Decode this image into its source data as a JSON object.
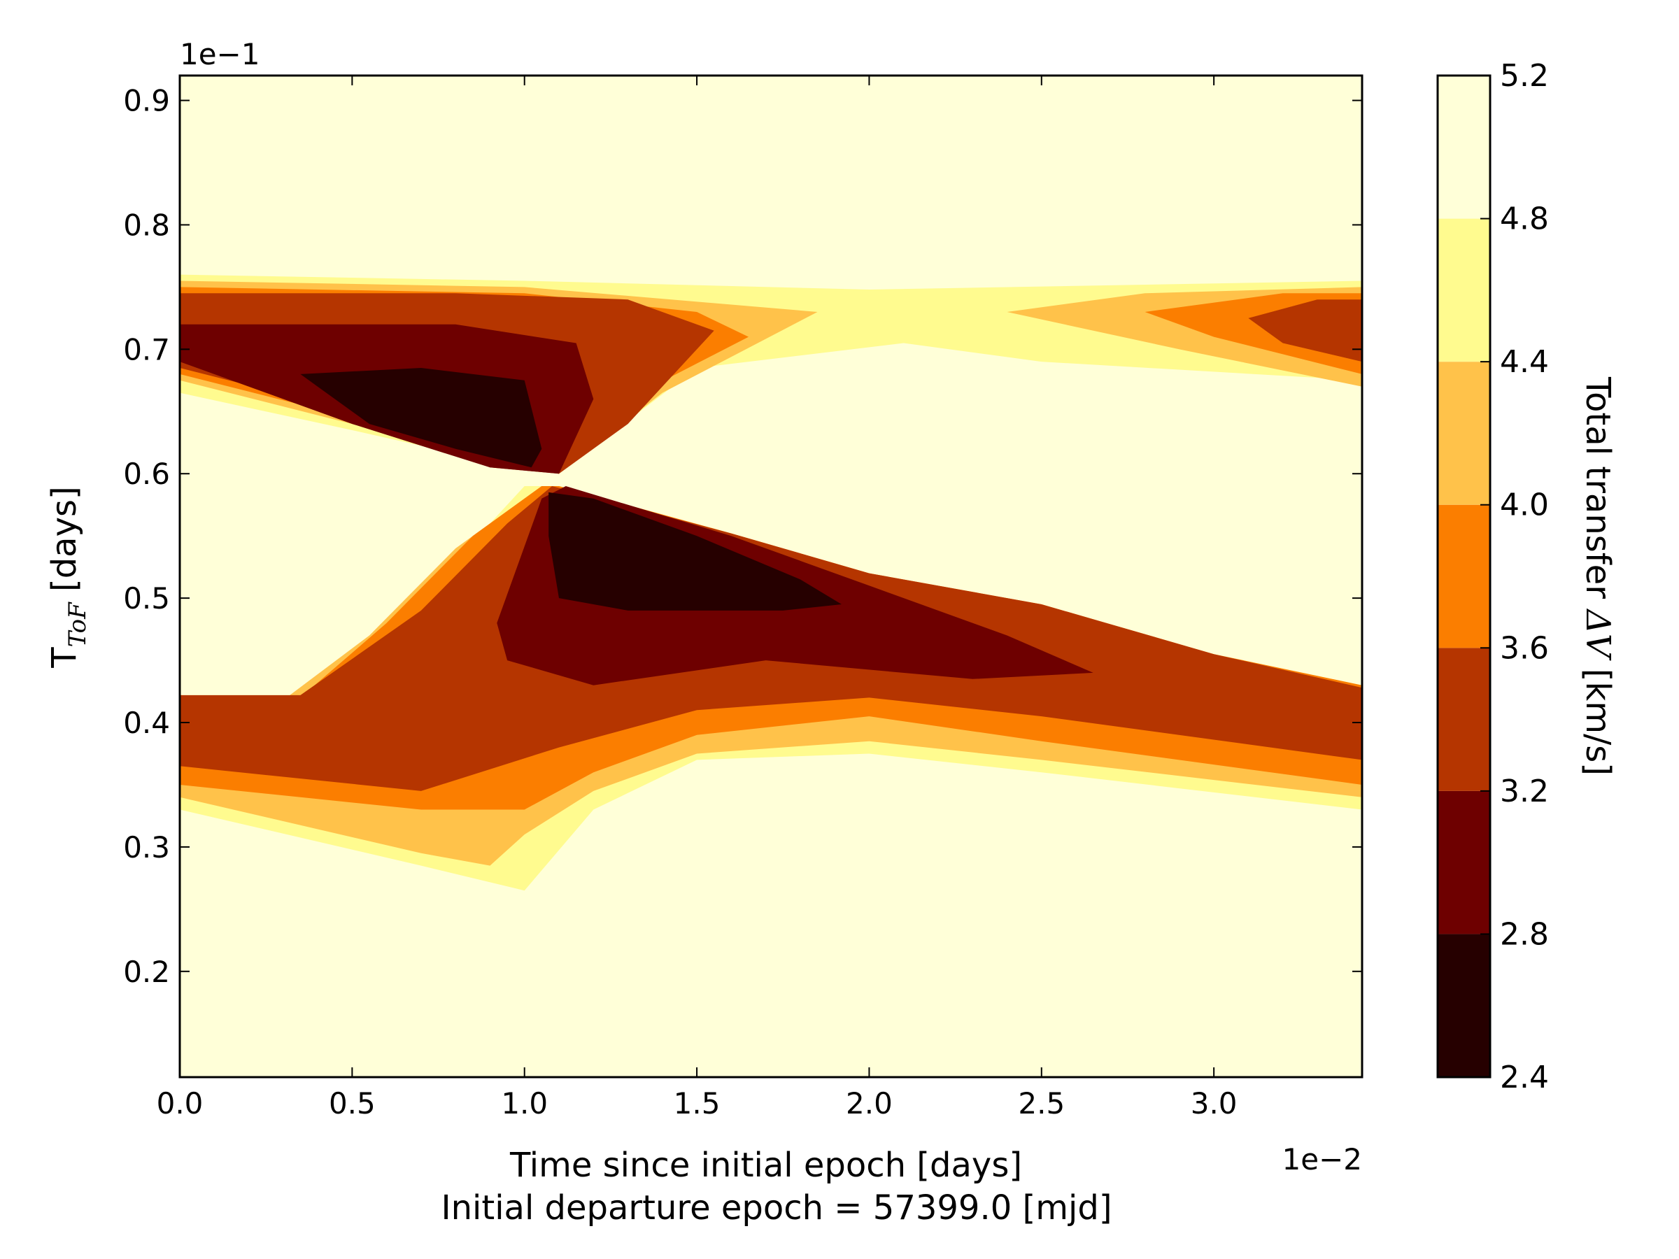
{
  "chart_data": {
    "type": "contour",
    "xlabel": "Time since initial epoch [days]",
    "xlabel_line2": "Initial departure epoch = 57399.0 [mjd]",
    "ylabel_main": "T",
    "ylabel_subscript": "ToF",
    "ylabel_rest": " [days]",
    "x_offset_text": "1e−2",
    "y_offset_text": "1e−1",
    "xlim": [
      0.0,
      3.43
    ],
    "ylim": [
      0.115,
      0.92
    ],
    "xticks": [
      0.0,
      0.5,
      1.0,
      1.5,
      2.0,
      2.5,
      3.0
    ],
    "xtick_labels": [
      "0.0",
      "0.5",
      "1.0",
      "1.5",
      "2.0",
      "2.5",
      "3.0"
    ],
    "yticks": [
      0.2,
      0.3,
      0.4,
      0.5,
      0.6,
      0.7,
      0.8,
      0.9
    ],
    "ytick_labels": [
      "0.2",
      "0.3",
      "0.4",
      "0.5",
      "0.6",
      "0.7",
      "0.8",
      "0.9"
    ],
    "colorbar": {
      "label_main": "Total transfer ",
      "label_symbol": "ΔV",
      "label_rest": " [km/s]",
      "levels": [
        2.4,
        2.8,
        3.2,
        3.6,
        4.0,
        4.4,
        4.8,
        5.2
      ],
      "level_labels": [
        "2.4",
        "2.8",
        "3.2",
        "3.6",
        "4.0",
        "4.4",
        "4.8",
        "5.2"
      ],
      "colors": [
        "#260000",
        "#6e0000",
        "#b53500",
        "#fb7e00",
        "#ffc24a",
        "#fffb8f",
        "#ffffd8"
      ]
    },
    "regions": [
      {
        "level": 5,
        "points": [
          [
            0,
            0.76
          ],
          [
            1.0,
            0.755
          ],
          [
            2.0,
            0.748
          ],
          [
            3.43,
            0.755
          ],
          [
            3.43,
            0.675
          ],
          [
            2.5,
            0.69
          ],
          [
            2.1,
            0.705
          ],
          [
            1.5,
            0.685
          ],
          [
            1.1,
            0.6
          ],
          [
            0.9,
            0.61
          ],
          [
            0.5,
            0.635
          ],
          [
            0,
            0.665
          ]
        ]
      },
      {
        "level": 5,
        "points": [
          [
            0,
            0.422
          ],
          [
            0.3,
            0.418
          ],
          [
            0.55,
            0.46
          ],
          [
            0.8,
            0.53
          ],
          [
            1.0,
            0.59
          ],
          [
            1.1,
            0.59
          ],
          [
            1.6,
            0.55
          ],
          [
            2.0,
            0.52
          ],
          [
            2.5,
            0.49
          ],
          [
            3.0,
            0.455
          ],
          [
            3.43,
            0.43
          ],
          [
            3.43,
            0.33
          ],
          [
            2.5,
            0.36
          ],
          [
            2.0,
            0.375
          ],
          [
            1.5,
            0.37
          ],
          [
            1.2,
            0.33
          ],
          [
            1.0,
            0.265
          ],
          [
            0.7,
            0.285
          ],
          [
            0,
            0.33
          ]
        ]
      },
      {
        "level": 4,
        "points": [
          [
            0,
            0.755
          ],
          [
            1.0,
            0.75
          ],
          [
            1.85,
            0.73
          ],
          [
            1.4,
            0.665
          ],
          [
            1.1,
            0.6
          ],
          [
            0.9,
            0.61
          ],
          [
            0.5,
            0.64
          ],
          [
            0,
            0.675
          ]
        ]
      },
      {
        "level": 4,
        "points": [
          [
            2.4,
            0.73
          ],
          [
            2.8,
            0.745
          ],
          [
            3.43,
            0.75
          ],
          [
            3.43,
            0.67
          ],
          [
            2.9,
            0.7
          ]
        ]
      },
      {
        "level": 4,
        "points": [
          [
            0,
            0.422
          ],
          [
            0.3,
            0.418
          ],
          [
            0.55,
            0.47
          ],
          [
            0.8,
            0.54
          ],
          [
            1.05,
            0.59
          ],
          [
            1.1,
            0.59
          ],
          [
            1.6,
            0.552
          ],
          [
            2.0,
            0.52
          ],
          [
            2.5,
            0.495
          ],
          [
            3.0,
            0.455
          ],
          [
            3.43,
            0.428
          ],
          [
            3.43,
            0.34
          ],
          [
            2.5,
            0.37
          ],
          [
            2.0,
            0.385
          ],
          [
            1.5,
            0.375
          ],
          [
            1.2,
            0.345
          ],
          [
            1.0,
            0.31
          ],
          [
            0.9,
            0.285
          ],
          [
            0.7,
            0.295
          ],
          [
            0,
            0.34
          ]
        ]
      },
      {
        "level": 3,
        "points": [
          [
            0,
            0.75
          ],
          [
            1.0,
            0.745
          ],
          [
            1.5,
            0.73
          ],
          [
            1.65,
            0.71
          ],
          [
            1.3,
            0.66
          ],
          [
            1.1,
            0.6
          ],
          [
            0.9,
            0.61
          ],
          [
            0.5,
            0.645
          ],
          [
            0,
            0.68
          ]
        ]
      },
      {
        "level": 3,
        "points": [
          [
            2.8,
            0.73
          ],
          [
            3.2,
            0.745
          ],
          [
            3.43,
            0.745
          ],
          [
            3.43,
            0.68
          ],
          [
            3.0,
            0.71
          ]
        ]
      },
      {
        "level": 3,
        "points": [
          [
            0,
            0.422
          ],
          [
            0.35,
            0.42
          ],
          [
            0.6,
            0.48
          ],
          [
            0.85,
            0.55
          ],
          [
            1.05,
            0.59
          ],
          [
            1.1,
            0.59
          ],
          [
            1.6,
            0.552
          ],
          [
            2.0,
            0.52
          ],
          [
            2.5,
            0.495
          ],
          [
            3.0,
            0.455
          ],
          [
            3.43,
            0.43
          ],
          [
            3.43,
            0.35
          ],
          [
            2.5,
            0.385
          ],
          [
            2.0,
            0.405
          ],
          [
            1.5,
            0.39
          ],
          [
            1.2,
            0.36
          ],
          [
            1.0,
            0.33
          ],
          [
            0.7,
            0.33
          ],
          [
            0,
            0.35
          ]
        ]
      },
      {
        "level": 2,
        "points": [
          [
            0,
            0.745
          ],
          [
            0.8,
            0.745
          ],
          [
            1.3,
            0.74
          ],
          [
            1.55,
            0.715
          ],
          [
            1.3,
            0.64
          ],
          [
            1.1,
            0.6
          ],
          [
            0.9,
            0.605
          ],
          [
            0.5,
            0.65
          ],
          [
            0,
            0.685
          ]
        ]
      },
      {
        "level": 2,
        "points": [
          [
            3.1,
            0.725
          ],
          [
            3.3,
            0.74
          ],
          [
            3.43,
            0.74
          ],
          [
            3.43,
            0.69
          ],
          [
            3.2,
            0.705
          ]
        ]
      },
      {
        "level": 2,
        "points": [
          [
            0,
            0.422
          ],
          [
            0.35,
            0.422
          ],
          [
            0.7,
            0.49
          ],
          [
            0.95,
            0.56
          ],
          [
            1.08,
            0.59
          ],
          [
            1.15,
            0.585
          ],
          [
            1.6,
            0.552
          ],
          [
            2.0,
            0.52
          ],
          [
            2.5,
            0.495
          ],
          [
            3.0,
            0.455
          ],
          [
            3.43,
            0.428
          ],
          [
            3.43,
            0.37
          ],
          [
            2.5,
            0.405
          ],
          [
            2.0,
            0.42
          ],
          [
            1.5,
            0.41
          ],
          [
            1.1,
            0.38
          ],
          [
            0.7,
            0.345
          ],
          [
            0,
            0.365
          ]
        ]
      },
      {
        "level": 1,
        "points": [
          [
            0,
            0.72
          ],
          [
            0.8,
            0.72
          ],
          [
            1.15,
            0.705
          ],
          [
            1.2,
            0.66
          ],
          [
            1.1,
            0.6
          ],
          [
            0.9,
            0.605
          ],
          [
            0.5,
            0.64
          ],
          [
            0,
            0.69
          ]
        ]
      },
      {
        "level": 1,
        "points": [
          [
            0.92,
            0.48
          ],
          [
            1.05,
            0.58
          ],
          [
            1.12,
            0.59
          ],
          [
            1.6,
            0.55
          ],
          [
            2.0,
            0.51
          ],
          [
            2.4,
            0.47
          ],
          [
            2.65,
            0.44
          ],
          [
            2.3,
            0.435
          ],
          [
            1.7,
            0.45
          ],
          [
            1.2,
            0.43
          ],
          [
            0.95,
            0.45
          ]
        ]
      },
      {
        "level": 0,
        "points": [
          [
            0.35,
            0.68
          ],
          [
            0.7,
            0.685
          ],
          [
            1.0,
            0.675
          ],
          [
            1.05,
            0.62
          ],
          [
            1.02,
            0.605
          ],
          [
            0.8,
            0.62
          ],
          [
            0.55,
            0.64
          ],
          [
            0.4,
            0.67
          ]
        ]
      },
      {
        "level": 0,
        "points": [
          [
            1.07,
            0.585
          ],
          [
            1.2,
            0.58
          ],
          [
            1.5,
            0.55
          ],
          [
            1.8,
            0.515
          ],
          [
            1.92,
            0.495
          ],
          [
            1.75,
            0.49
          ],
          [
            1.3,
            0.49
          ],
          [
            1.1,
            0.5
          ],
          [
            1.07,
            0.55
          ]
        ]
      }
    ]
  }
}
